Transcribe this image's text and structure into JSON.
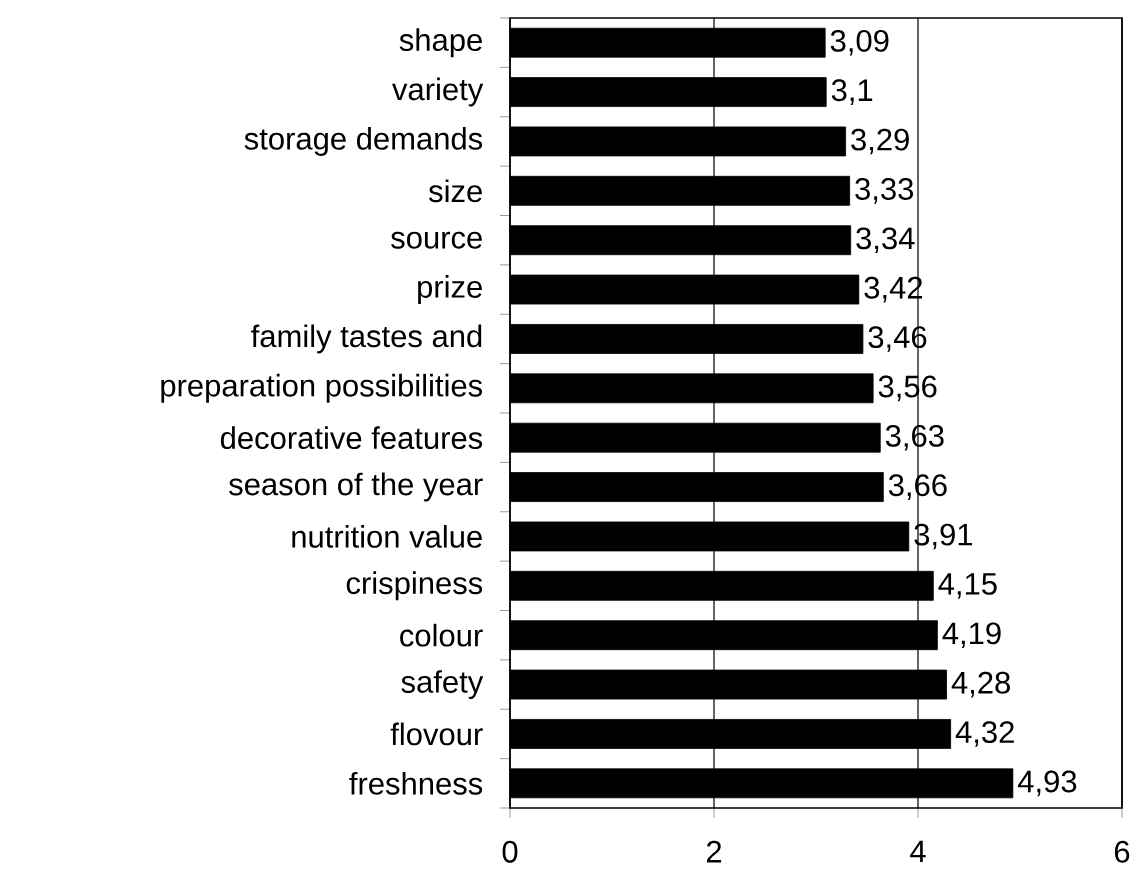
{
  "chart_data": {
    "type": "bar",
    "orientation": "horizontal",
    "categories": [
      "shape",
      "variety",
      "storage demands",
      "size",
      "source",
      "prize",
      "family tastes and",
      "preparation possibilities",
      "decorative features",
      "season of the year",
      "nutrition value",
      "crispiness",
      "colour",
      "safety",
      "flovour",
      "freshness"
    ],
    "values": [
      3.09,
      3.1,
      3.29,
      3.33,
      3.34,
      3.42,
      3.46,
      3.56,
      3.63,
      3.66,
      3.91,
      4.15,
      4.19,
      4.28,
      4.32,
      4.93
    ],
    "value_labels": [
      "3,09",
      "3,1",
      "3,29",
      "3,33",
      "3,34",
      "3,42",
      "3,46",
      "3,56",
      "3,63",
      "3,66",
      "3,91",
      "4,15",
      "4,19",
      "4,28",
      "4,32",
      "4,93"
    ],
    "color": "#000000",
    "xlim": [
      0,
      6
    ],
    "xticks": [
      0,
      2,
      4,
      6
    ],
    "grid": "x"
  }
}
